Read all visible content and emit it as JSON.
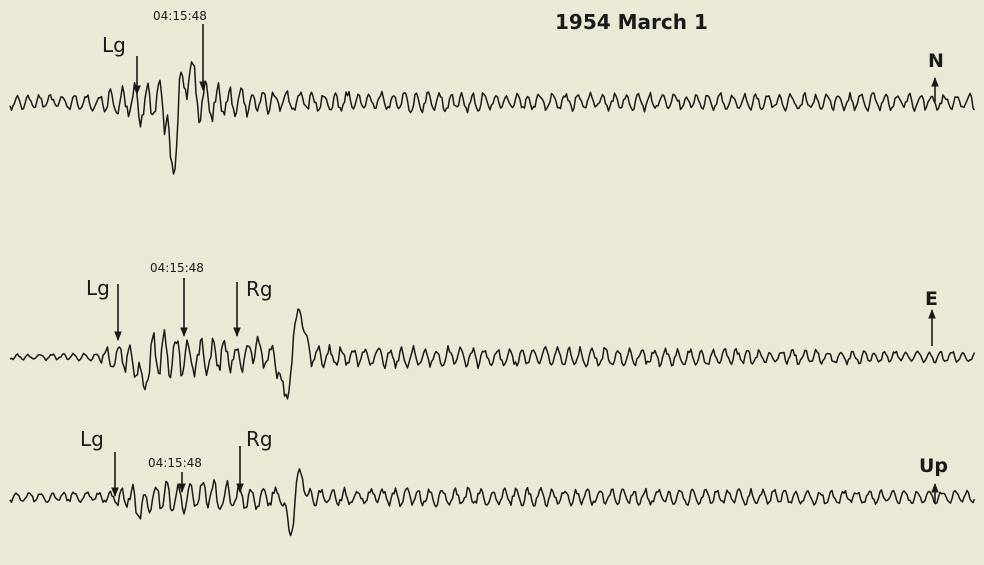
{
  "title": "1954 March 1",
  "traces": [
    {
      "component": "N",
      "phases": [
        "Lg"
      ],
      "time": "04:15:48"
    },
    {
      "component": "E",
      "phases": [
        "Lg",
        "Rg"
      ],
      "time": "04:15:48"
    },
    {
      "component": "Up",
      "phases": [
        "Lg",
        "Rg"
      ],
      "time": "04:15:48"
    }
  ]
}
